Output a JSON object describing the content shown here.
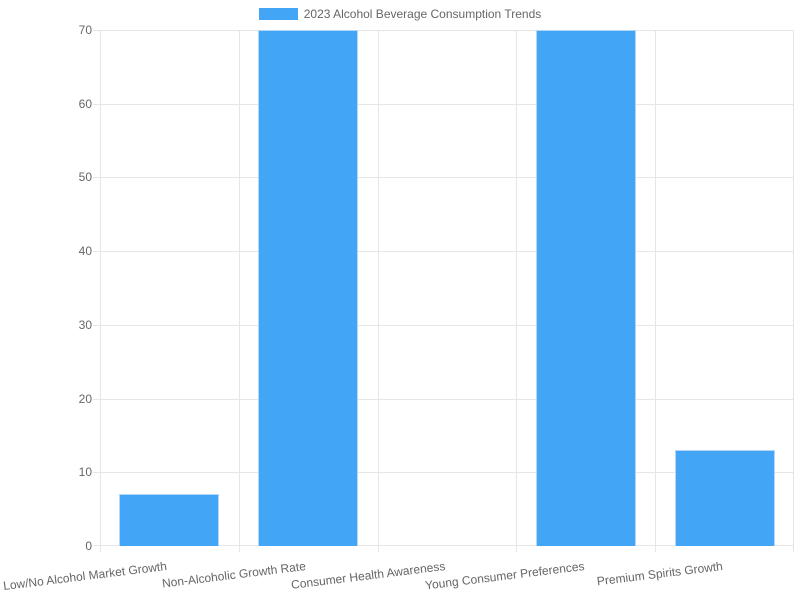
{
  "chart_data": {
    "type": "bar",
    "title": "2023 Alcohol Beverage Consumption Trends",
    "legend_position": "top",
    "categories": [
      "Low/No Alcohol Market Growth",
      "Non-Alcoholic Growth Rate",
      "Consumer Health Awareness",
      "Young Consumer Preferences",
      "Premium Spirits Growth"
    ],
    "series": [
      {
        "name": "2023 Alcohol Beverage Consumption Trends",
        "values": [
          7,
          70,
          0,
          70,
          13
        ]
      }
    ],
    "xlabel": "",
    "ylabel": "",
    "ylim": [
      0,
      70
    ],
    "yticks": [
      0,
      10,
      20,
      30,
      40,
      50,
      60,
      70
    ],
    "grid": true,
    "colors": {
      "bar": "#42a5f5",
      "bar_border": "#b3d7f6",
      "gridline": "#e6e6e6",
      "axis_text": "#666666"
    }
  }
}
